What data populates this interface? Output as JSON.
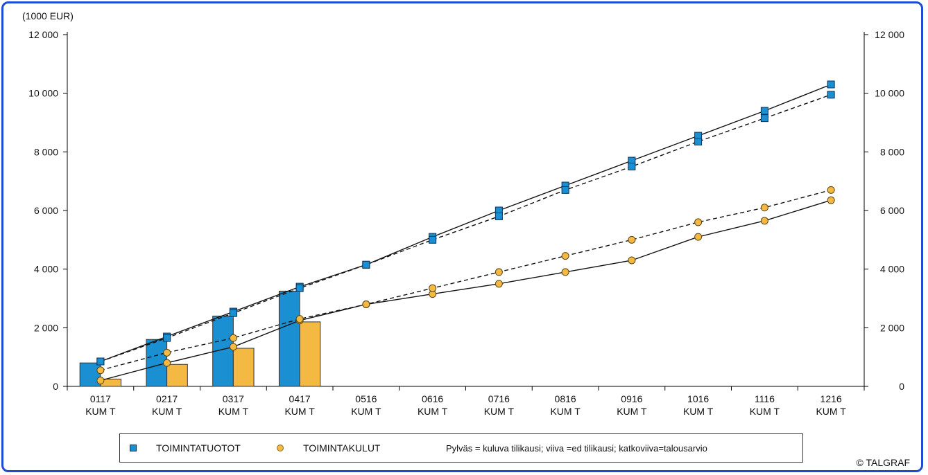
{
  "chart_data": {
    "type": "bar",
    "unit_label": "(1000 EUR)",
    "categories": [
      "0117\nKUM T",
      "0217\nKUM T",
      "0317\nKUM T",
      "0417\nKUM T",
      "0516\nKUM T",
      "0616\nKUM T",
      "0716\nKUM T",
      "0816\nKUM T",
      "0916\nKUM T",
      "1016\nKUM T",
      "1116\nKUM T",
      "1216\nKUM T"
    ],
    "ylim": [
      0,
      12000
    ],
    "yticks": [
      0,
      2000,
      4000,
      6000,
      8000,
      10000,
      12000
    ],
    "ytick_labels": [
      "0",
      "2 000",
      "4 000",
      "6 000",
      "8 000",
      "10 000",
      "12 000"
    ],
    "grid": false,
    "legend_position": "bottom",
    "series": [
      {
        "name": "TOIMINTATUOTOT",
        "color": "#1a8fd1",
        "bars_current": [
          800,
          1600,
          2400,
          3250,
          null,
          null,
          null,
          null,
          null,
          null,
          null,
          null
        ],
        "line_previous": [
          850,
          1700,
          2550,
          3400,
          4150,
          5100,
          6000,
          6850,
          7700,
          8550,
          9400,
          10300
        ],
        "dashed_budget": [
          850,
          1650,
          2500,
          3350,
          4150,
          5000,
          5800,
          6700,
          7500,
          8350,
          9150,
          9950
        ]
      },
      {
        "name": "TOIMINTAKULUT",
        "color": "#f4b942",
        "bars_current": [
          250,
          750,
          1300,
          2200,
          null,
          null,
          null,
          null,
          null,
          null,
          null,
          null
        ],
        "line_previous": [
          200,
          800,
          1350,
          2250,
          2800,
          3150,
          3500,
          3900,
          4300,
          5100,
          5650,
          6350
        ],
        "dashed_budget": [
          550,
          1150,
          1650,
          2300,
          2800,
          3350,
          3900,
          4450,
          5000,
          5600,
          6100,
          6700
        ]
      }
    ],
    "legend_note": "Pylväs = kuluva tilikausi; viiva =ed tilikausi; katkoviiva=talousarvio"
  },
  "legend": {
    "item1": "TOIMINTATUOTOT",
    "item2": "TOIMINTAKULUT",
    "note": "Pylväs = kuluva tilikausi; viiva =ed tilikausi; katkoviiva=talousarvio"
  },
  "footer": {
    "copyright": "© TALGRAF"
  },
  "colors": {
    "frame": "#1e4bd6",
    "blue_bar": "#1a8fd1",
    "orange_bar": "#f4b942"
  }
}
